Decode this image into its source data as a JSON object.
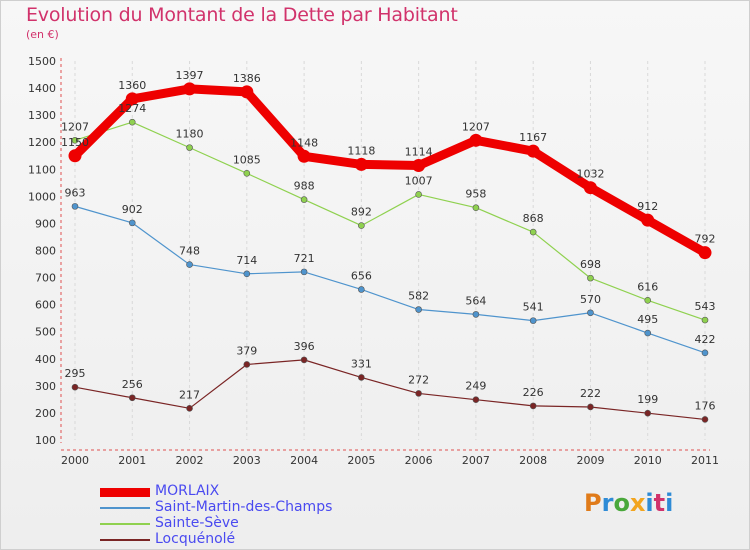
{
  "title": "Evolution du Montant de la Dette par Habitant",
  "subtitle": "(en €)",
  "chart_data": {
    "type": "line",
    "title": "Evolution du Montant de la Dette par Habitant",
    "subtitle": "(en €)",
    "x": [
      "2000",
      "2001",
      "2002",
      "2003",
      "2004",
      "2005",
      "2006",
      "2007",
      "2008",
      "2009",
      "2010",
      "2011"
    ],
    "ylim": [
      100,
      1500
    ],
    "yticks": [
      "100",
      "200",
      "300",
      "400",
      "500",
      "600",
      "700",
      "800",
      "900",
      "1000",
      "1100",
      "1200",
      "1300",
      "1400",
      "1500"
    ],
    "grid": "vertical dashed",
    "legend_position": "bottom-left",
    "series": [
      {
        "name": "MORLAIX",
        "color": "#ee0000",
        "emphasis": true,
        "values": [
          1150,
          1360,
          1397,
          1386,
          1148,
          1118,
          1114,
          1207,
          1167,
          1032,
          912,
          792
        ],
        "labels": [
          "1150",
          "1360",
          "1397",
          "1386",
          "1148",
          "1118",
          "1114",
          "1207",
          "1167",
          "1032",
          "912",
          "792"
        ]
      },
      {
        "name": "Saint-Martin-des-Champs",
        "color": "#4f94cd",
        "values": [
          963,
          902,
          748,
          714,
          721,
          656,
          582,
          564,
          541,
          570,
          495,
          422
        ],
        "labels": [
          "963",
          "902",
          "748",
          "714",
          "721",
          "656",
          "582",
          "564",
          "541",
          "570",
          "495",
          "422"
        ]
      },
      {
        "name": "Sainte-Sève",
        "color": "#8fd14f",
        "values": [
          1207,
          1274,
          1180,
          1085,
          988,
          892,
          1007,
          958,
          868,
          698,
          616,
          543
        ],
        "labels": [
          "1207",
          "1274",
          "1180",
          "1085",
          "988",
          "892",
          "1007",
          "958",
          "868",
          "698",
          "616",
          "543"
        ]
      },
      {
        "name": "Locquénolé",
        "color": "#7a2525",
        "values": [
          295,
          256,
          217,
          379,
          396,
          331,
          272,
          249,
          226,
          222,
          199,
          176
        ],
        "labels": [
          "295",
          "256",
          "217",
          "379",
          "396",
          "331",
          "272",
          "249",
          "226",
          "222",
          "199",
          "176"
        ]
      }
    ]
  },
  "logo": {
    "p": "P",
    "r": "r",
    "o": "o",
    "x": "x",
    "i": "i",
    "t": "t",
    "i2": "i"
  }
}
